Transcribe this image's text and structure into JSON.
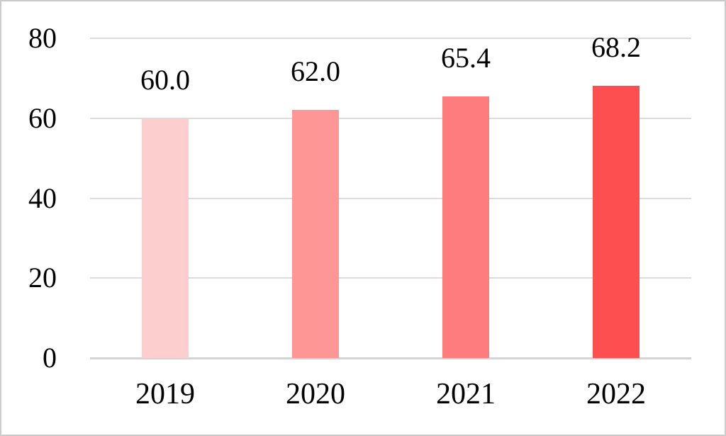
{
  "chart_data": {
    "type": "bar",
    "categories": [
      "2019",
      "2020",
      "2021",
      "2022"
    ],
    "values": [
      60.0,
      62.0,
      65.4,
      68.2
    ],
    "data_labels": [
      "60.0",
      "62.0",
      "65.4",
      "68.2"
    ],
    "bar_colors": [
      "#fccecd",
      "#fe9695",
      "#fe7c7e",
      "#fd4f4f"
    ],
    "title": "",
    "xlabel": "",
    "ylabel": "",
    "ylim": [
      0,
      80
    ],
    "yticks": [
      0,
      20,
      40,
      60,
      80
    ],
    "ytick_labels": [
      "0",
      "20",
      "40",
      "60",
      "80"
    ],
    "grid": true,
    "legend": false,
    "data_labels_position": "outside-end"
  },
  "colors": {
    "gridline": "#dcdcdc",
    "axis_line": "#d4d4d4",
    "text": "#000000",
    "background": "#ffffff",
    "frame_border": "#cbcbcb"
  }
}
